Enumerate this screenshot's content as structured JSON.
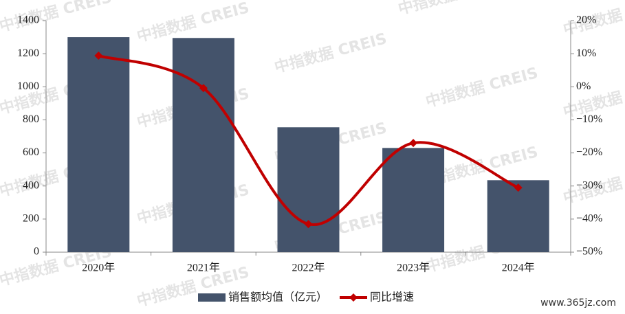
{
  "chart_data": {
    "type": "bar-line",
    "categories": [
      "2020年",
      "2021年",
      "2022年",
      "2023年",
      "2024年"
    ],
    "series": [
      {
        "name": "销售额均值（亿元）",
        "type": "bar",
        "color": "#44536b",
        "values": [
          1300,
          1295,
          755,
          630,
          435
        ]
      },
      {
        "name": "同比增速",
        "type": "line",
        "axis": "y2",
        "color": "#c00000",
        "values": [
          9.4,
          -0.4,
          -41.5,
          -17,
          -30.5
        ]
      }
    ],
    "ylim": [
      0,
      1400
    ],
    "yticks": [
      0,
      200,
      400,
      600,
      800,
      1000,
      1200,
      1400
    ],
    "y2lim": [
      -50,
      20
    ],
    "y2ticks": [
      {
        "value": -50,
        "label": "−50%"
      },
      {
        "value": -40,
        "label": "−40%"
      },
      {
        "value": -30,
        "label": "−30%"
      },
      {
        "value": -20,
        "label": "−20%"
      },
      {
        "value": -10,
        "label": "−10%"
      },
      {
        "value": 0,
        "label": "0%"
      },
      {
        "value": 10,
        "label": "10%"
      },
      {
        "value": 20,
        "label": "20%"
      }
    ],
    "legend": "bottom",
    "watermark": "中指数据 CREIS",
    "site_label": "www.365jz.com"
  }
}
